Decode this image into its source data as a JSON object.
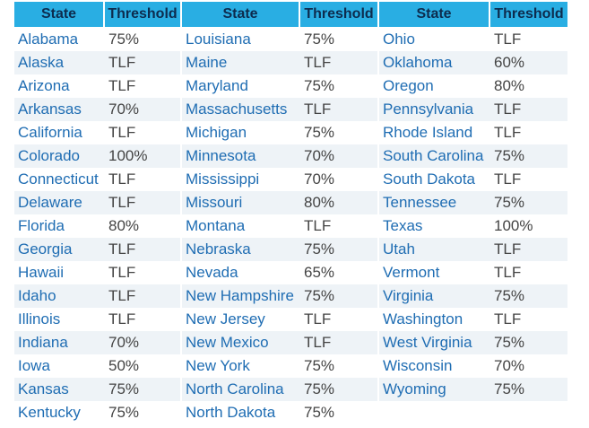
{
  "table": {
    "groups": [
      {
        "header": [
          "State",
          "Threshold"
        ],
        "rows": [
          [
            "Alabama",
            "75%"
          ],
          [
            "Alaska",
            "TLF"
          ],
          [
            "Arizona",
            "TLF"
          ],
          [
            "Arkansas",
            "70%"
          ],
          [
            "California",
            "TLF"
          ],
          [
            "Colorado",
            "100%"
          ],
          [
            "Connecticut",
            "TLF"
          ],
          [
            "Delaware",
            "TLF"
          ],
          [
            "Florida",
            "80%"
          ],
          [
            "Georgia",
            "TLF"
          ],
          [
            "Hawaii",
            "TLF"
          ],
          [
            "Idaho",
            "TLF"
          ],
          [
            "Illinois",
            "TLF"
          ],
          [
            "Indiana",
            "70%"
          ],
          [
            "Iowa",
            "50%"
          ],
          [
            "Kansas",
            "75%"
          ],
          [
            "Kentucky",
            "75%"
          ]
        ]
      },
      {
        "header": [
          "State",
          "Threshold"
        ],
        "rows": [
          [
            "Louisiana",
            "75%"
          ],
          [
            "Maine",
            "TLF"
          ],
          [
            "Maryland",
            "75%"
          ],
          [
            "Massachusetts",
            "TLF"
          ],
          [
            "Michigan",
            "75%"
          ],
          [
            "Minnesota",
            "70%"
          ],
          [
            "Mississippi",
            "70%"
          ],
          [
            "Missouri",
            "80%"
          ],
          [
            "Montana",
            "TLF"
          ],
          [
            "Nebraska",
            "75%"
          ],
          [
            "Nevada",
            "65%"
          ],
          [
            "New Hampshire",
            "75%"
          ],
          [
            "New Jersey",
            "TLF"
          ],
          [
            "New Mexico",
            "TLF"
          ],
          [
            "New York",
            "75%"
          ],
          [
            "North Carolina",
            "75%"
          ],
          [
            "North Dakota",
            "75%"
          ]
        ]
      },
      {
        "header": [
          "State",
          "Threshold"
        ],
        "rows": [
          [
            "Ohio",
            "TLF"
          ],
          [
            "Oklahoma",
            "60%"
          ],
          [
            "Oregon",
            "80%"
          ],
          [
            "Pennsylvania",
            "TLF"
          ],
          [
            "Rhode Island",
            "TLF"
          ],
          [
            "South Carolina",
            "75%"
          ],
          [
            "South Dakota",
            "TLF"
          ],
          [
            "Tennessee",
            "75%"
          ],
          [
            "Texas",
            "100%"
          ],
          [
            "Utah",
            "TLF"
          ],
          [
            "Vermont",
            "TLF"
          ],
          [
            "Virginia",
            "75%"
          ],
          [
            "Washington",
            "TLF"
          ],
          [
            "West Virginia",
            "75%"
          ],
          [
            "Wisconsin",
            "70%"
          ],
          [
            "Wyoming",
            "75%"
          ]
        ]
      }
    ]
  }
}
